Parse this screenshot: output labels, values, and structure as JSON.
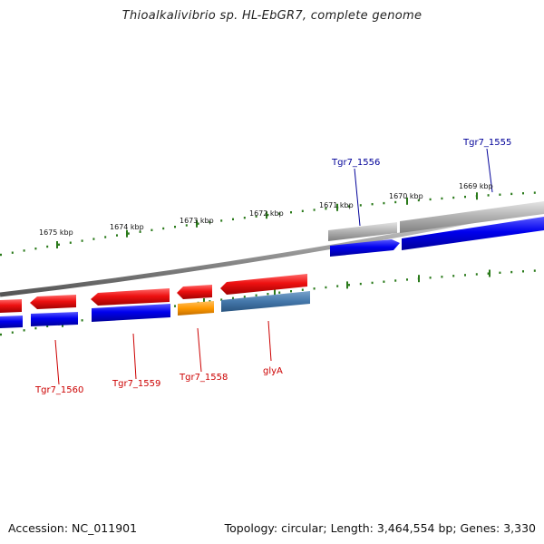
{
  "title": "Thioalkalivibrio sp. HL-EbGR7, complete genome",
  "footer": {
    "accession": "Accession: NC_011901",
    "stats": "Topology: circular; Length: 3,464,554 bp; Genes: 3,330"
  },
  "ruler": {
    "labels": [
      "1675 kbp",
      "1674 kbp",
      "1673 kbp",
      "1672 kbp",
      "1671 kbp",
      "1670 kbp",
      "1669 kbp"
    ],
    "tick_color": "#2a7a1a"
  },
  "colors": {
    "cds_red": "#ee1111",
    "cds_blue": "#0000ee",
    "cds_gray": "#b0b0b0",
    "cds_orange": "#ff9900",
    "cds_steel": "#4477aa",
    "backbone": "#888888",
    "label_red": "#cc0000",
    "label_blue": "#000099"
  },
  "gene_labels": {
    "top": [
      "Tgr7_1556",
      "Tgr7_1555"
    ],
    "bottom": [
      "Tgr7_1560",
      "Tgr7_1559",
      "Tgr7_1558",
      "glyA"
    ]
  }
}
